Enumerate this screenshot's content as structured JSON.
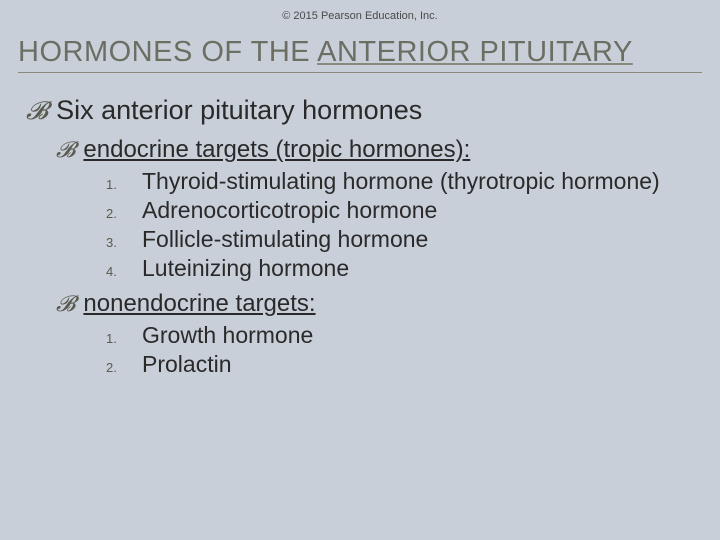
{
  "copyright": "© 2015 Pearson Education, Inc.",
  "title": {
    "plain": "HORMONES OF THE ",
    "underlined": "ANTERIOR PITUITARY"
  },
  "mainBullet": "Six anterior pituitary hormones",
  "section1": {
    "heading": "endocrine targets (tropic hormones):",
    "items": [
      {
        "n": "1.",
        "t": "Thyroid-stimulating hormone (thyrotropic hormone)"
      },
      {
        "n": "2.",
        "t": "Adrenocorticotropic hormone"
      },
      {
        "n": "3.",
        "t": "Follicle-stimulating hormone"
      },
      {
        "n": "4.",
        "t": "Luteinizing hormone"
      }
    ]
  },
  "section2": {
    "heading": "nonendocrine targets:",
    "items": [
      {
        "n": "1.",
        "t": "Growth hormone"
      },
      {
        "n": "2.",
        "t": "Prolactin"
      }
    ]
  },
  "colors": {
    "background": "#c8cfd9",
    "titleColor": "#6b6e63",
    "textColor": "#2a2a2a",
    "bulletColor": "#5a5a50"
  }
}
